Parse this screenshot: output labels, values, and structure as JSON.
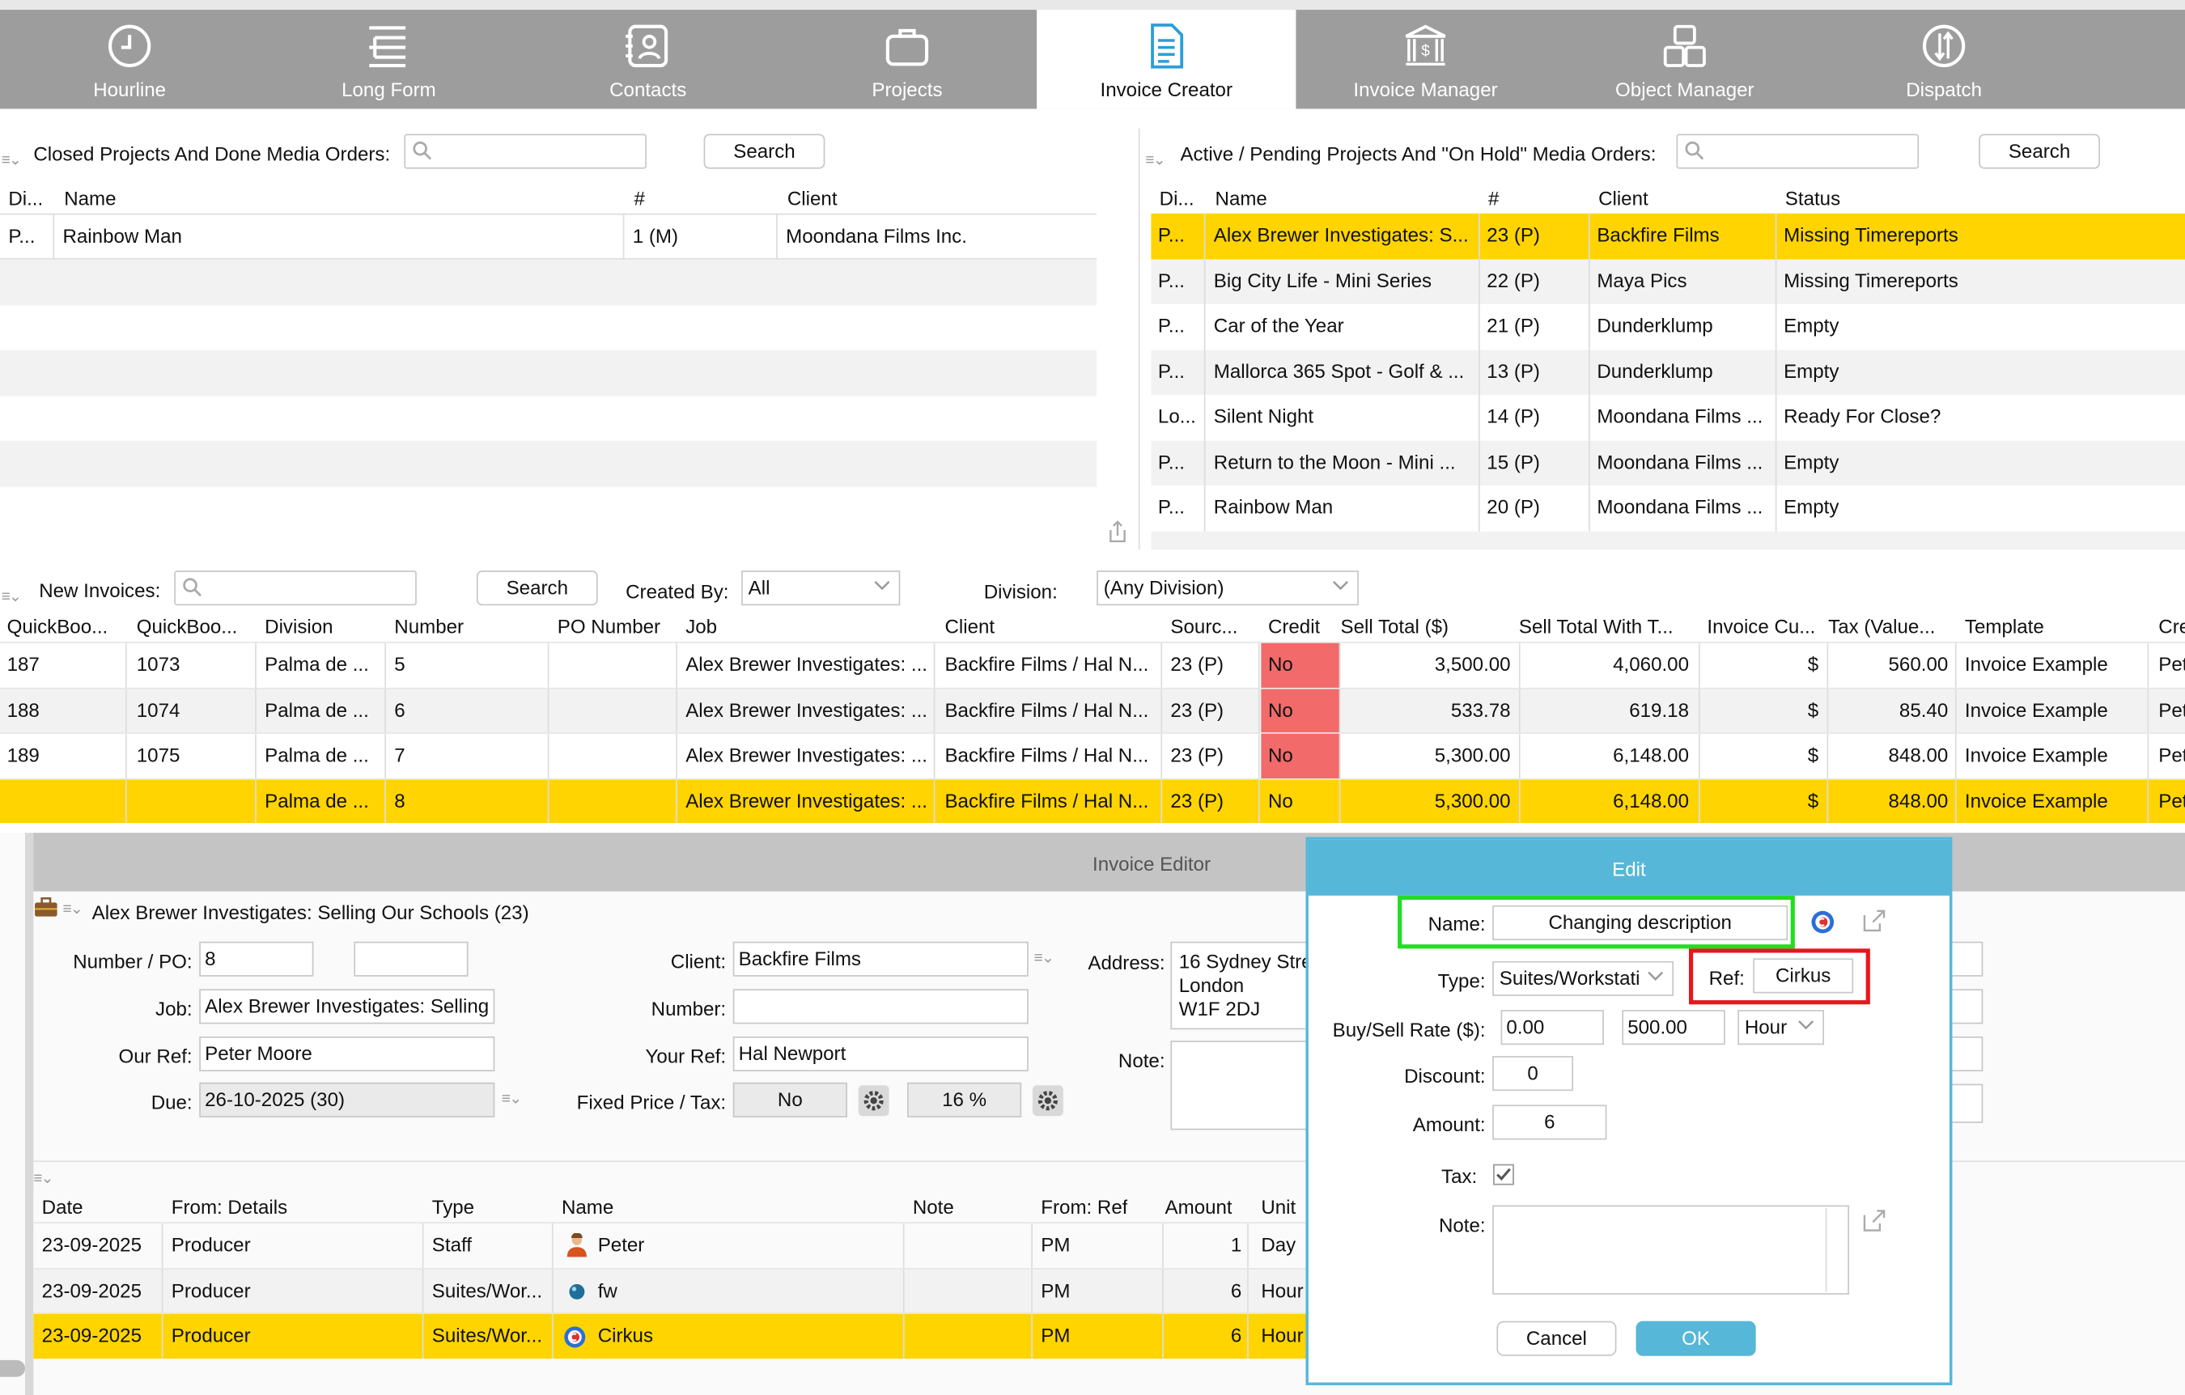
{
  "tabs": [
    {
      "label": "Hourline",
      "icon": "clock-icon"
    },
    {
      "label": "Long Form",
      "icon": "list-tree-icon"
    },
    {
      "label": "Contacts",
      "icon": "contact-card-icon"
    },
    {
      "label": "Projects",
      "icon": "briefcase-icon"
    },
    {
      "label": "Invoice Creator",
      "icon": "invoice-document-icon",
      "active": true
    },
    {
      "label": "Invoice Manager",
      "icon": "bank-dollar-icon"
    },
    {
      "label": "Object Manager",
      "icon": "objects-icon"
    },
    {
      "label": "Dispatch",
      "icon": "dispatch-arrows-icon"
    }
  ],
  "closed": {
    "title": "Closed Projects And Done Media Orders:",
    "search_value": "",
    "search_label": "Search",
    "columns": [
      "Di...",
      "Name",
      "#",
      "Client"
    ],
    "rows": [
      [
        "P...",
        "Rainbow Man",
        "1 (M)",
        "Moondana Films Inc."
      ]
    ]
  },
  "active": {
    "title": "Active / Pending Projects And \"On Hold\" Media Orders:",
    "search_value": "",
    "search_label": "Search",
    "columns": [
      "Di...",
      "Name",
      "#",
      "Client",
      "Status"
    ],
    "rows": [
      [
        "P...",
        "Alex Brewer Investigates: S...",
        "23 (P)",
        "Backfire Films",
        "Missing Timereports"
      ],
      [
        "P...",
        "Big City Life - Mini Series",
        "22 (P)",
        "Maya Pics",
        "Missing Timereports"
      ],
      [
        "P...",
        "Car of the Year",
        "21 (P)",
        "Dunderklump",
        "Empty"
      ],
      [
        "P...",
        "Mallorca 365 Spot - Golf & ...",
        "13 (P)",
        "Dunderklump",
        "Empty"
      ],
      [
        "Lo...",
        "Silent Night",
        "14 (P)",
        "Moondana Films ...",
        "Ready For Close?"
      ],
      [
        "P...",
        "Return to the Moon - Mini ...",
        "15 (P)",
        "Moondana Films ...",
        "Empty"
      ],
      [
        "P...",
        "Rainbow Man",
        "20 (P)",
        "Moondana Films ...",
        "Empty"
      ]
    ],
    "selected_row": 0
  },
  "invoices": {
    "title": "New Invoices:",
    "search_value": "",
    "search_label": "Search",
    "created_by_label": "Created By:",
    "created_by_value": "All",
    "division_label": "Division:",
    "division_value": "(Any Division)",
    "columns": [
      "QuickBoo...",
      "QuickBoo...",
      "Division",
      "Number",
      "PO Number",
      "Job",
      "Client",
      "Sourc...",
      "Credit",
      "Sell Total ($)",
      "Sell Total With T...",
      "Invoice Cu...",
      "Tax (Value...",
      "Template",
      "Cre"
    ],
    "rows": [
      [
        "187",
        "1073",
        "Palma de ...",
        "5",
        "",
        "Alex Brewer Investigates: ...",
        "Backfire Films / Hal N...",
        "23 (P)",
        "No",
        "3,500.00",
        "4,060.00",
        "$",
        "560.00",
        "Invoice Example",
        "Pet"
      ],
      [
        "188",
        "1074",
        "Palma de ...",
        "6",
        "",
        "Alex Brewer Investigates: ...",
        "Backfire Films / Hal N...",
        "23 (P)",
        "No",
        "533.78",
        "619.18",
        "$",
        "85.40",
        "Invoice Example",
        "Pet"
      ],
      [
        "189",
        "1075",
        "Palma de ...",
        "7",
        "",
        "Alex Brewer Investigates: ...",
        "Backfire Films / Hal N...",
        "23 (P)",
        "No",
        "5,300.00",
        "6,148.00",
        "$",
        "848.00",
        "Invoice Example",
        "Pet"
      ],
      [
        "",
        "",
        "Palma de ...",
        "8",
        "",
        "Alex Brewer Investigates: ...",
        "Backfire Films / Hal N...",
        "23 (P)",
        "No",
        "5,300.00",
        "6,148.00",
        "$",
        "848.00",
        "Invoice Example",
        "Pet"
      ]
    ],
    "credit_color": "#f26a6a",
    "selected_row": 3
  },
  "editor": {
    "title": "Invoice Editor",
    "project": "Alex Brewer Investigates: Selling Our Schools (23)",
    "number_po_label": "Number / PO:",
    "number_value": "8",
    "po_value": "",
    "job_label": "Job:",
    "job_value": "Alex Brewer Investigates: Selling",
    "our_ref_label": "Our Ref:",
    "our_ref_value": "Peter Moore",
    "due_label": "Due:",
    "due_value": "26-10-2025 (30)",
    "client_label": "Client:",
    "client_value": "Backfire Films",
    "number2_label": "Number:",
    "number2_value": "",
    "your_ref_label": "Your Ref:",
    "your_ref_value": "Hal Newport",
    "fixed_label": "Fixed Price / Tax:",
    "fixed_value": "No",
    "tax_value": "16 %",
    "address_label": "Address:",
    "address_lines": [
      "16 Sydney Stre",
      "London",
      "W1F 2DJ"
    ],
    "note_label": "Note:",
    "lines_columns": [
      "Date",
      "From: Details",
      "Type",
      "Name",
      "Note",
      "From: Ref",
      "Amount",
      "Unit"
    ],
    "lines": [
      [
        "23-09-2025",
        "Producer",
        "Staff",
        "Peter",
        "",
        "PM",
        "1",
        "Day"
      ],
      [
        "23-09-2025",
        "Producer",
        "Suites/Wor...",
        "fw",
        "",
        "PM",
        "6",
        "Hour"
      ],
      [
        "23-09-2025",
        "Producer",
        "Suites/Wor...",
        "Cirkus",
        "",
        "PM",
        "6",
        "Hour"
      ]
    ],
    "selected_line": 2
  },
  "edit_dialog": {
    "title": "Edit",
    "name_label": "Name:",
    "name_value": "Changing description",
    "type_label": "Type:",
    "type_value": "Suites/Workstati",
    "ref_label": "Ref:",
    "ref_value": "Cirkus",
    "rate_label": "Buy/Sell Rate ($):",
    "buy_rate": "0.00",
    "sell_rate": "500.00",
    "rate_unit": "Hour",
    "discount_label": "Discount:",
    "discount_value": "0",
    "amount_label": "Amount:",
    "amount_value": "6",
    "tax_label": "Tax:",
    "tax_checked": true,
    "note_label": "Note:",
    "note_value": "",
    "cancel_label": "Cancel",
    "ok_label": "OK",
    "accent": "#56b7d8",
    "highlight_green": "#22dd22",
    "highlight_red": "#e8161c"
  }
}
